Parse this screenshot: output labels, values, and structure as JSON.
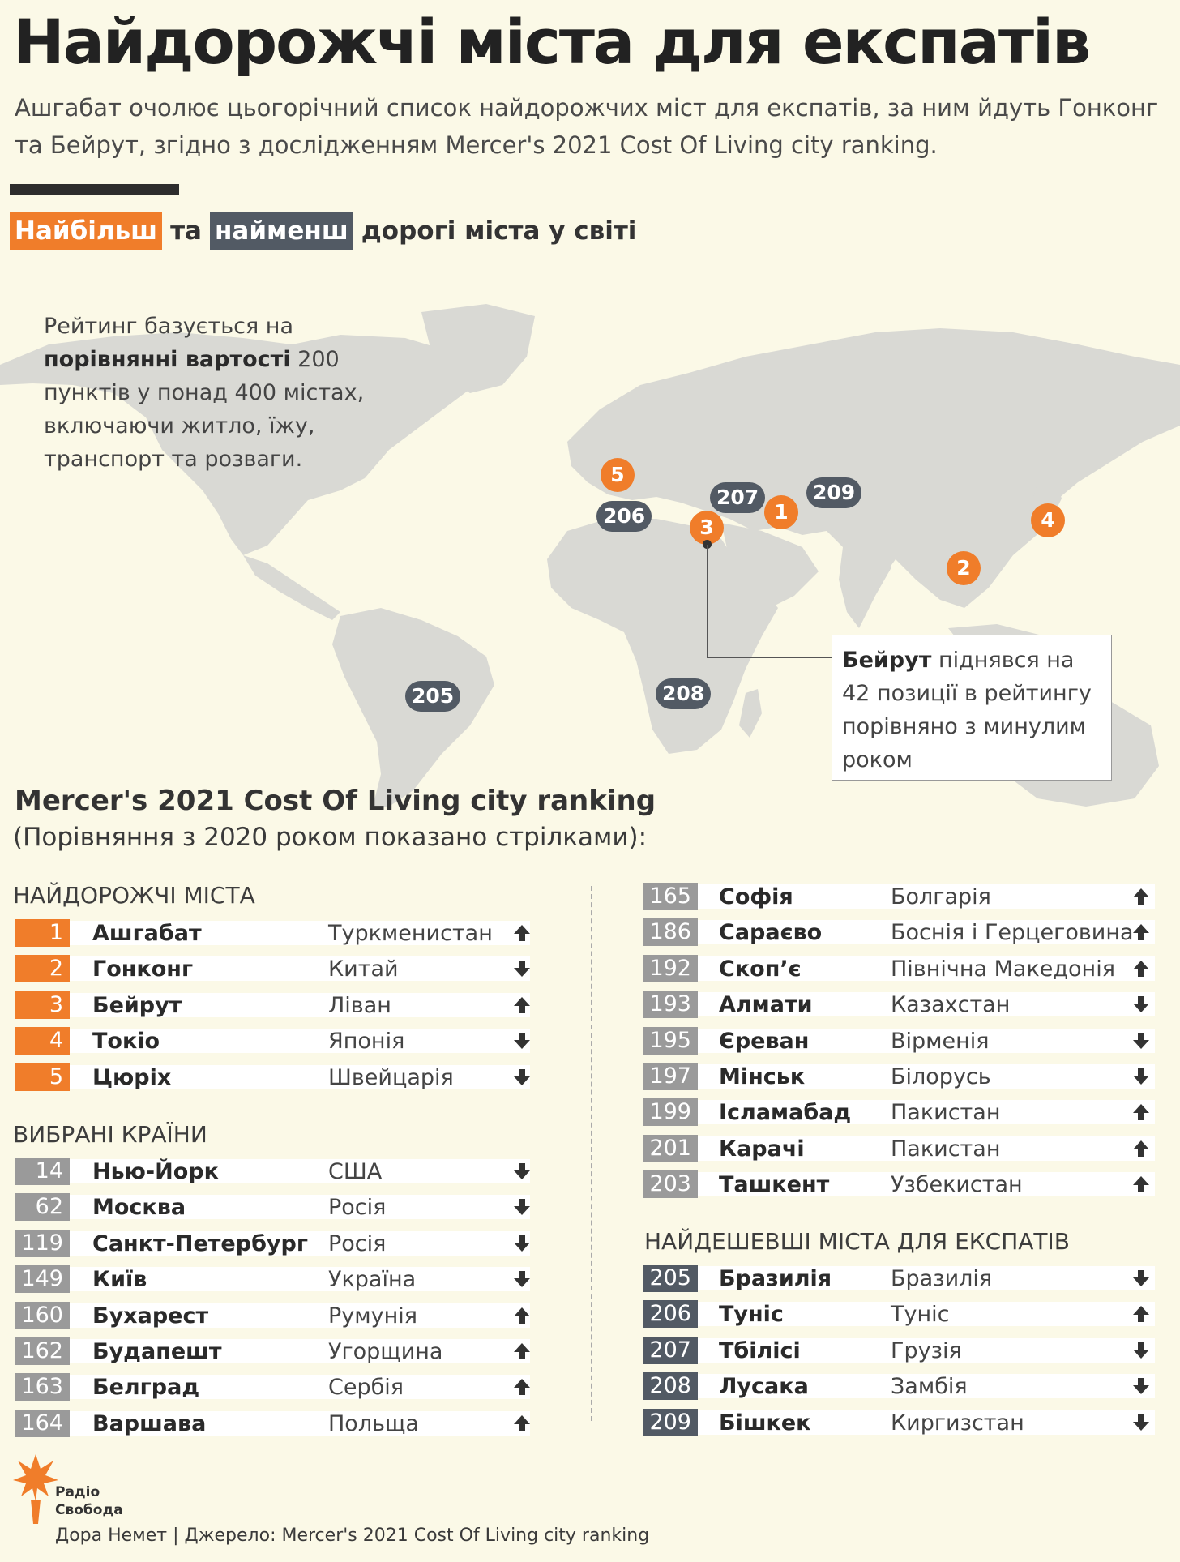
{
  "title": "Найдорожчі міста для експатів",
  "subtitle": "Ашгабат очолює цьогорічний список найдорожчих міст для експатів, за ним йдуть Гонконг та Бейрут, згідно з дослідженням Mercer's 2021 Cost Of Living city ranking.",
  "legend": {
    "most": "Найбільш",
    "and": "та",
    "least": "найменш",
    "rest": "дорогі міста у світі"
  },
  "map_note": {
    "t1": "Рейтинг базується на ",
    "b1": "порівнянні вартості",
    "t2": " 200 пунктів у понад 400 містах, включаючи житло, їжу, транспорт та розваги."
  },
  "map_pins": {
    "p1": "1",
    "p2": "2",
    "p3": "3",
    "p4": "4",
    "p5": "5",
    "p205": "205",
    "p206": "206",
    "p207": "207",
    "p208": "208",
    "p209": "209"
  },
  "callout": {
    "bold": "Бейрут",
    "text": " піднявся на 42 позиції в рейтингу порівняно з минулим роком"
  },
  "ranking": {
    "title": "Mercer's 2021 Cost Of Living city ranking",
    "subtitle": "(Порівняння з 2020 роком показано стрілками):"
  },
  "sections": {
    "most_expensive": "НАЙДОРОЖЧІ МІСТА",
    "selected": "ВИБРАНІ КРАЇНИ",
    "cheapest": "НАЙДЕШЕВШІ МІСТА ДЛЯ ЕКСПАТІВ"
  },
  "most_expensive": [
    {
      "rank": "1",
      "city": "Ашгабат",
      "country": "Туркменистан",
      "trend": "up"
    },
    {
      "rank": "2",
      "city": "Гонконг",
      "country": "Китай",
      "trend": "down"
    },
    {
      "rank": "3",
      "city": "Бейрут",
      "country": "Ліван",
      "trend": "up"
    },
    {
      "rank": "4",
      "city": "Токіо",
      "country": "Японія",
      "trend": "down"
    },
    {
      "rank": "5",
      "city": "Цюріх",
      "country": "Швейцарія",
      "trend": "down"
    }
  ],
  "selected": [
    {
      "rank": "14",
      "city": "Нью-Йорк",
      "country": "США",
      "trend": "down"
    },
    {
      "rank": "62",
      "city": "Москва",
      "country": "Росія",
      "trend": "down"
    },
    {
      "rank": "119",
      "city": "Санкт-Петербург",
      "country": "Росія",
      "trend": "down"
    },
    {
      "rank": "149",
      "city": "Київ",
      "country": "Україна",
      "trend": "down"
    },
    {
      "rank": "160",
      "city": "Бухарест",
      "country": "Румунія",
      "trend": "up"
    },
    {
      "rank": "162",
      "city": "Будапешт",
      "country": "Угорщина",
      "trend": "up"
    },
    {
      "rank": "163",
      "city": "Белград",
      "country": "Сербія",
      "trend": "up"
    },
    {
      "rank": "164",
      "city": "Варшава",
      "country": "Польща",
      "trend": "up"
    }
  ],
  "selected_right": [
    {
      "rank": "165",
      "city": "Софія",
      "country": "Болгарія",
      "trend": "up"
    },
    {
      "rank": "186",
      "city": "Сараєво",
      "country": "Боснія і Герцеговина",
      "trend": "up"
    },
    {
      "rank": "192",
      "city": "Скоп’є",
      "country": "Північна Македонія",
      "trend": "up"
    },
    {
      "rank": "193",
      "city": "Алмати",
      "country": "Казахстан",
      "trend": "down"
    },
    {
      "rank": "195",
      "city": "Єреван",
      "country": "Вірменія",
      "trend": "down"
    },
    {
      "rank": "197",
      "city": "Мінськ",
      "country": "Білорусь",
      "trend": "down"
    },
    {
      "rank": "199",
      "city": "Ісламабад",
      "country": "Пакистан",
      "trend": "up"
    },
    {
      "rank": "201",
      "city": "Карачі",
      "country": "Пакистан",
      "trend": "up"
    },
    {
      "rank": "203",
      "city": "Ташкент",
      "country": "Узбекистан",
      "trend": "up"
    }
  ],
  "cheapest": [
    {
      "rank": "205",
      "city": "Бразилія",
      "country": "Бразилія",
      "trend": "down"
    },
    {
      "rank": "206",
      "city": "Туніс",
      "country": "Туніс",
      "trend": "up"
    },
    {
      "rank": "207",
      "city": "Тбілісі",
      "country": "Грузія",
      "trend": "down"
    },
    {
      "rank": "208",
      "city": "Лусака",
      "country": "Замбія",
      "trend": "down"
    },
    {
      "rank": "209",
      "city": "Бішкек",
      "country": "Киргизстан",
      "trend": "down"
    }
  ],
  "logo": {
    "line1": "Радіо",
    "line2": "Свобода"
  },
  "credits": "Дора Немет | Джерело: Mercer's 2021 Cost Of Living city ranking",
  "colors": {
    "background": "#fbf9e7",
    "orange": "#f07d2a",
    "dark_gray": "#525a64",
    "light_gray": "#9a9a9a",
    "land": "#d9d9d4"
  }
}
